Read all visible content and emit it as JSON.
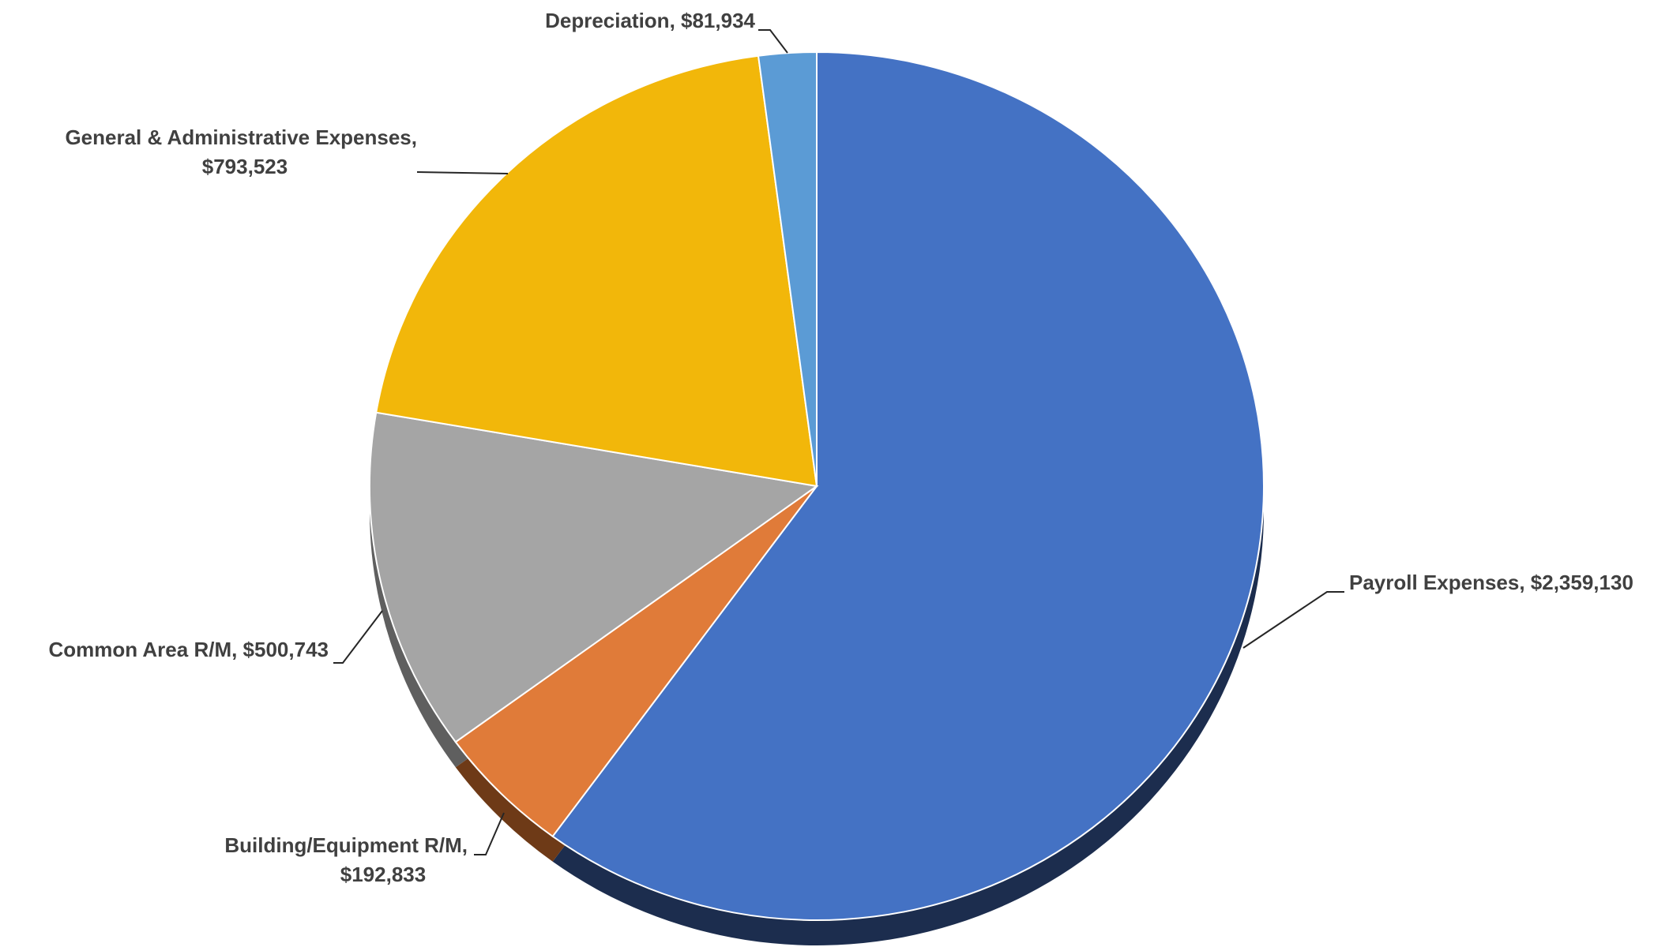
{
  "chart_data": {
    "type": "pie",
    "categories": [
      "Payroll Expenses",
      "Building/Equipment R/M",
      "Common Area R/M",
      "General & Administrative Expenses",
      "Depreciation"
    ],
    "values": [
      2359130,
      192833,
      500743,
      793523,
      81934
    ],
    "value_labels": [
      "$2,359,130",
      "$192,833",
      "$500,743",
      "$793,523",
      "$81,934"
    ],
    "colors": [
      "#4472C4",
      "#E07B39",
      "#A5A5A5",
      "#F2B70A",
      "#5B9BD5"
    ],
    "shadow_colors": [
      "#1C2D4E",
      "#6E3A17",
      "#5F5F5F",
      "#8A6806",
      "#2E5C88"
    ],
    "data_labels": [
      {
        "lines": [
          "Payroll Expenses, $2,359,130"
        ]
      },
      {
        "lines": [
          "Building/Equipment R/M,",
          "$192,833"
        ]
      },
      {
        "lines": [
          "Common Area R/M, $500,743"
        ]
      },
      {
        "lines": [
          "General & Administrative Expenses,",
          "$793,523"
        ]
      },
      {
        "lines": [
          "Depreciation, $81,934"
        ]
      }
    ],
    "title": "",
    "legend": "none",
    "start_angle": "12 o'clock",
    "direction": "clockwise",
    "style": "3d-tilted"
  }
}
